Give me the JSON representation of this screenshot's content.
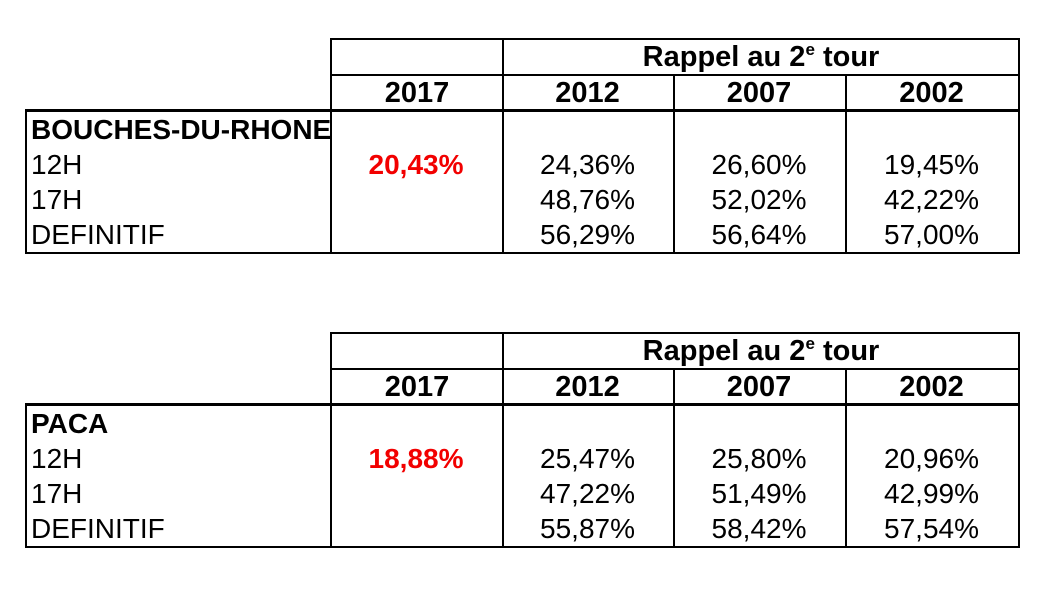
{
  "page": {
    "background": "#ffffff",
    "text_color": "#000000",
    "border_color": "#000000",
    "accent_red": "#f20000"
  },
  "tables": [
    {
      "id": "bouches-du-rhone",
      "region": "BOUCHES-DU-RHONE",
      "recall_header": {
        "prefix": "Rappel au 2",
        "superscript": "e",
        "suffix": " tour"
      },
      "years": [
        "2017",
        "2012",
        "2007",
        "2002"
      ],
      "rows": [
        {
          "label": "BOUCHES-DU-RHONE",
          "bold": true,
          "values": [
            "",
            "",
            "",
            ""
          ],
          "red_cols": []
        },
        {
          "label": "12H",
          "bold": false,
          "values": [
            "20,43%",
            "24,36%",
            "26,60%",
            "19,45%"
          ],
          "red_cols": [
            0
          ]
        },
        {
          "label": "17H",
          "bold": false,
          "values": [
            "",
            "48,76%",
            "52,02%",
            "42,22%"
          ],
          "red_cols": []
        },
        {
          "label": "DEFINITIF",
          "bold": false,
          "values": [
            "",
            "56,29%",
            "56,64%",
            "57,00%"
          ],
          "red_cols": []
        }
      ]
    },
    {
      "id": "paca",
      "region": "PACA",
      "recall_header": {
        "prefix": "Rappel au 2",
        "superscript": "e",
        "suffix": " tour"
      },
      "years": [
        "2017",
        "2012",
        "2007",
        "2002"
      ],
      "rows": [
        {
          "label": "PACA",
          "bold": true,
          "values": [
            "",
            "",
            "",
            ""
          ],
          "red_cols": []
        },
        {
          "label": "12H",
          "bold": false,
          "values": [
            "18,88%",
            "25,47%",
            "25,80%",
            "20,96%"
          ],
          "red_cols": [
            0
          ]
        },
        {
          "label": "17H",
          "bold": false,
          "values": [
            "",
            "47,22%",
            "51,49%",
            "42,99%"
          ],
          "red_cols": []
        },
        {
          "label": "DEFINITIF",
          "bold": false,
          "values": [
            "",
            "55,87%",
            "58,42%",
            "57,54%"
          ],
          "red_cols": []
        }
      ]
    }
  ]
}
